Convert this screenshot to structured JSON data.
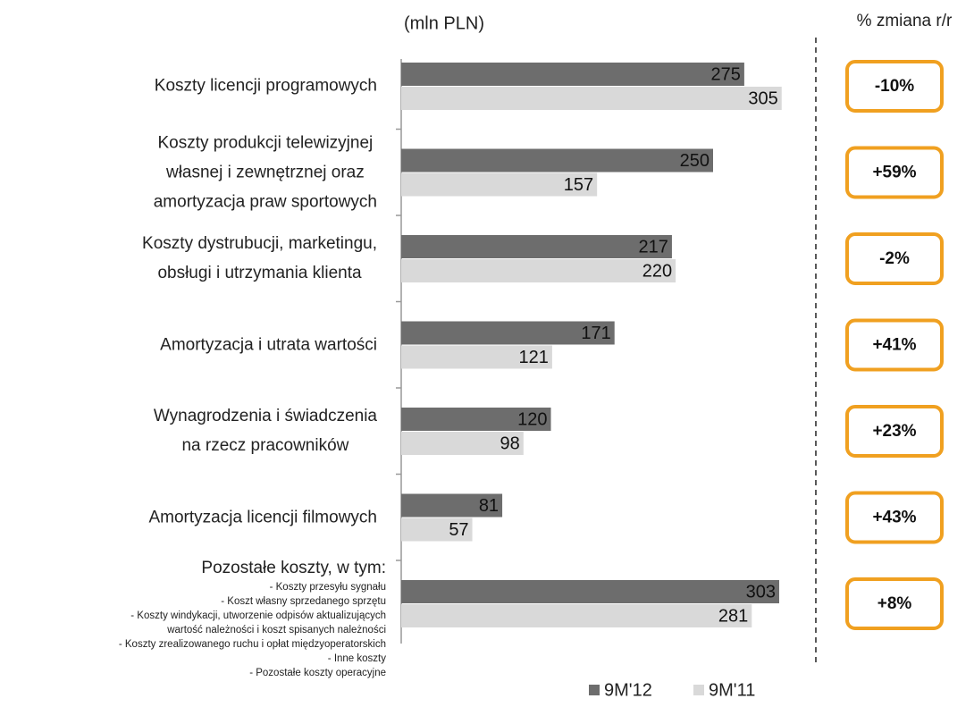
{
  "chart_data": {
    "type": "hbar",
    "unit_label": "(mln PLN)",
    "categories": [
      "Koszty licencji programowych",
      "Koszty produkcji telewizyjnej\nwłasnej i zewnętrznej oraz\namortyzacja praw sportowych",
      "Koszty dystrubucji, marketingu,\nobsługi i utrzymania klienta",
      "Amortyzacja i utrata wartości",
      "Wynagrodzenia i świadczenia\nna rzecz pracowników",
      "Amortyzacja licencji filmowych",
      "Pozostałe koszty, w tym:"
    ],
    "category_details": [
      "- Koszty przesyłu sygnału",
      "- Koszt własny sprzedanego sprzętu",
      "- Koszty windykacji, utworzenie odpisów aktualizujących\nwartość należności i koszt spisanych należności",
      "- Koszty zrealizowanego ruchu i opłat międzyoperatorskich",
      "- Inne koszty",
      "- Pozostałe koszty operacyjne"
    ],
    "series": [
      {
        "name": "9M'12",
        "color": "#6d6d6d",
        "values": [
          275,
          250,
          217,
          171,
          120,
          81,
          303
        ]
      },
      {
        "name": "9M'11",
        "color": "#d9d9d9",
        "values": [
          305,
          157,
          220,
          121,
          98,
          57,
          281
        ]
      }
    ],
    "change": {
      "title": "% zmiana r/r",
      "color": "#f0a020",
      "values": [
        -10,
        59,
        -2,
        41,
        23,
        43,
        8
      ],
      "value_labels": [
        "-10%",
        "+59%",
        "-2%",
        "+41%",
        "+23%",
        "+43%",
        "+8%"
      ]
    },
    "legend": "bottom"
  }
}
